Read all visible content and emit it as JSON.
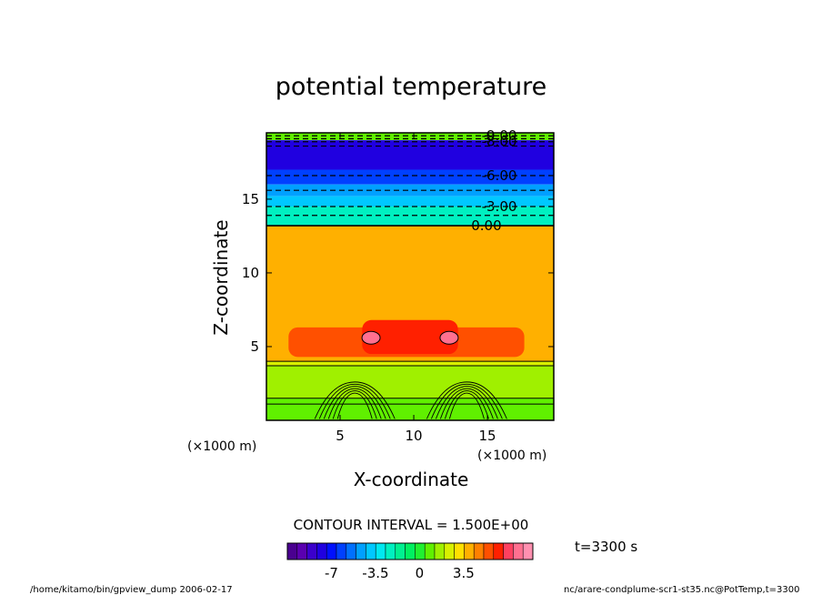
{
  "chart_data": {
    "type": "heatmap",
    "title": "potential temperature",
    "xlabel": "X-coordinate",
    "ylabel": "Z-coordinate",
    "x_unit": "(×1000 m)",
    "y_unit": "(×1000 m)",
    "xlim": [
      0,
      19.5
    ],
    "ylim": [
      0,
      19.5
    ],
    "x_ticks": [
      5,
      10,
      15
    ],
    "y_ticks": [
      5,
      10,
      15
    ],
    "x_tick_labels": [
      "5",
      "10",
      "15"
    ],
    "y_tick_labels": [
      "5",
      "10",
      "15"
    ],
    "contour_interval": "CONTOUR INTERVAL = 1.500E+00",
    "time_label": "t=3300 s",
    "contour_labels": [
      {
        "text": "-9.00",
        "x": 14.6,
        "z": 19.3
      },
      {
        "text": "-8.00",
        "x": 14.6,
        "z": 18.9
      },
      {
        "text": "-6.00",
        "x": 14.6,
        "z": 16.6
      },
      {
        "text": "-3.00",
        "x": 14.6,
        "z": 14.5
      },
      {
        "text": "0.00",
        "x": 13.9,
        "z": 13.2
      }
    ],
    "layers": [
      {
        "z0": 19.0,
        "z1": 19.5,
        "value": 0.5
      },
      {
        "z0": 17.0,
        "z1": 19.0,
        "value": -8.0
      },
      {
        "z0": 16.0,
        "z1": 17.0,
        "value": -6.5
      },
      {
        "z0": 15.2,
        "z1": 16.0,
        "value": -5.0
      },
      {
        "z0": 14.5,
        "z1": 15.2,
        "value": -3.5
      },
      {
        "z0": 13.2,
        "z1": 14.5,
        "value": -2.0
      },
      {
        "z0": 4.0,
        "z1": 13.2,
        "value": 4.0
      },
      {
        "z0": 3.7,
        "z1": 4.0,
        "value": 2.5
      },
      {
        "z0": 1.5,
        "z1": 3.7,
        "value": 1.5
      },
      {
        "z0": 0.0,
        "z1": 1.5,
        "value": 1.0
      }
    ],
    "warm_bands": [
      {
        "x0": 1.5,
        "x1": 17.5,
        "z0": 4.3,
        "z1": 6.3,
        "value": 5.5
      },
      {
        "x0": 6.5,
        "x1": 13.0,
        "z0": 4.5,
        "z1": 6.8,
        "value": 6.5
      }
    ],
    "hot_spots": [
      {
        "x": 7.1,
        "z": 5.6,
        "value": 8.0
      },
      {
        "x": 12.4,
        "z": 5.6,
        "value": 8.0
      }
    ],
    "plumes": [
      {
        "x": 6.0
      },
      {
        "x": 13.6
      }
    ],
    "colorbar": {
      "colors": [
        "#4a0090",
        "#5a00b0",
        "#3b00cc",
        "#2000e0",
        "#0010ff",
        "#0040ff",
        "#0070ff",
        "#00a0ff",
        "#00c8ff",
        "#00e8f0",
        "#00f0c0",
        "#00f090",
        "#00f060",
        "#20f030",
        "#60f000",
        "#a0f000",
        "#d8f000",
        "#ffe000",
        "#ffb000",
        "#ff8000",
        "#ff5000",
        "#ff2000",
        "#ff4060",
        "#ff7090",
        "#ff90b0"
      ],
      "tick_labels": [
        "-7",
        "-3.5",
        "0",
        "3.5"
      ],
      "tick_values": [
        -7,
        -3.5,
        0,
        3.5
      ],
      "range": [
        -10.5,
        9.0
      ]
    },
    "footer_left": "/home/kitamo/bin/gpview_dump  2006-02-17",
    "footer_right": "nc/arare-condplume-scr1-st35.nc@PotTemp,t=3300"
  }
}
